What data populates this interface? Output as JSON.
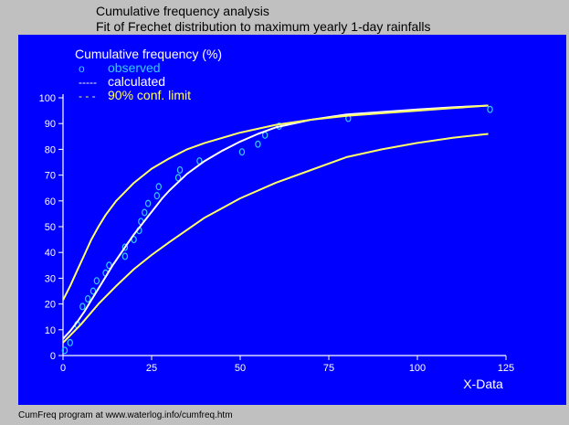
{
  "header": {
    "title": "Cumulative frequency analysis",
    "subtitle": "Fit of Frechet distribution to maximum yearly 1-day rainfalls"
  },
  "footer": "CumFreq program at www.waterlog.info/cumfreq.htm",
  "colors": {
    "background": "#C0C0C0",
    "plot_background": "#0000FF",
    "axes": "#FFFFFF",
    "calculated": "#FFFFFF",
    "confidence": "#FFFF66",
    "observed": "#33CCFF",
    "legend_title": "#FFFFFF",
    "legend_observed": "#33CCFF",
    "legend_calculated": "#FFFFFF",
    "legend_conf": "#FFFF66"
  },
  "chart_data": {
    "type": "scatter",
    "ylabel": "Cumulative frequency (%)",
    "xlabel": "X-Data",
    "xlim": [
      0,
      125
    ],
    "ylim": [
      0,
      100
    ],
    "xticks": [
      0,
      25,
      50,
      75,
      100,
      125
    ],
    "yticks": [
      0,
      10,
      20,
      30,
      40,
      50,
      60,
      70,
      80,
      90,
      100
    ],
    "grid": false,
    "legend": {
      "placement": "top-left",
      "entries": [
        {
          "symbol": "o",
          "label": "observed",
          "color_key": "legend_observed"
        },
        {
          "symbol": "-----",
          "label": "calculated",
          "color_key": "legend_calculated"
        },
        {
          "symbol": "- - -",
          "label": "90% conf. limit",
          "color_key": "legend_conf"
        }
      ]
    },
    "series": [
      {
        "name": "observed",
        "kind": "points",
        "color_key": "observed",
        "x": [
          0.5,
          2,
          4,
          5.5,
          7,
          8.5,
          9.5,
          12,
          13,
          17.5,
          17.5,
          20,
          21.5,
          22,
          23,
          24,
          26.5,
          27,
          32.5,
          33,
          38.5,
          50.5,
          55,
          57,
          61,
          80.5,
          120.5
        ],
        "y": [
          2,
          5,
          12,
          19,
          22,
          25,
          29,
          32,
          35,
          38.5,
          42,
          45,
          48.5,
          52,
          55.5,
          59,
          62,
          65.5,
          69,
          72,
          75.5,
          79,
          82,
          85.5,
          89,
          92,
          95.5
        ]
      },
      {
        "name": "calculated",
        "kind": "line",
        "color_key": "calculated",
        "x": [
          0,
          2,
          4,
          6,
          8,
          10,
          12,
          14,
          16,
          18,
          20,
          22,
          24,
          26,
          28,
          30,
          35,
          40,
          45,
          50,
          55,
          60,
          70,
          80,
          90,
          100,
          110,
          120
        ],
        "y": [
          6.5,
          9.5,
          13,
          17,
          21.5,
          26,
          30.5,
          35,
          39,
          43,
          47,
          50.5,
          54,
          57.5,
          61,
          64,
          70.5,
          75.5,
          79.5,
          83,
          86,
          88.5,
          91.5,
          93.5,
          94.5,
          95.5,
          96.3,
          97
        ]
      },
      {
        "name": "upper conf",
        "kind": "line",
        "color_key": "confidence",
        "x": [
          0,
          2,
          4,
          6,
          8,
          10,
          12,
          15,
          20,
          25,
          30,
          35,
          40,
          50,
          60,
          70,
          80,
          90,
          100,
          110,
          120
        ],
        "y": [
          21.5,
          27,
          33,
          39,
          45,
          50,
          54.5,
          60,
          67,
          72.5,
          76.5,
          80,
          82.5,
          86.5,
          89.5,
          91.5,
          93,
          94,
          95,
          96,
          97
        ]
      },
      {
        "name": "lower conf",
        "kind": "line",
        "color_key": "confidence",
        "x": [
          0,
          5,
          10,
          15,
          20,
          25,
          30,
          40,
          50,
          60,
          70,
          80,
          90,
          100,
          110,
          120
        ],
        "y": [
          5,
          12,
          20,
          27,
          33.5,
          39,
          44,
          53.5,
          61,
          67,
          72,
          77,
          80,
          82.5,
          84.5,
          86
        ]
      }
    ]
  }
}
